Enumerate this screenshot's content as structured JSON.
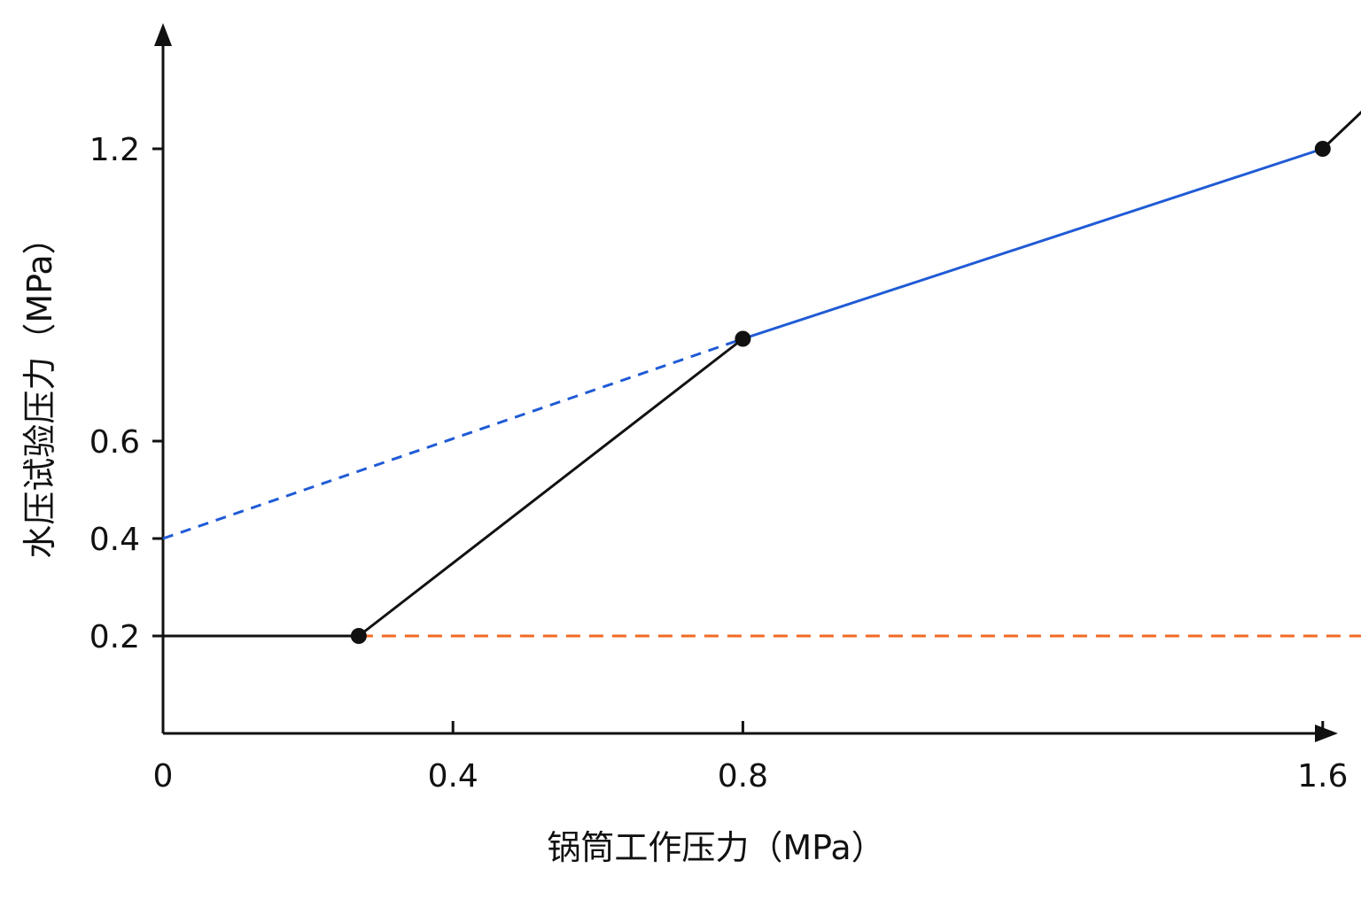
{
  "chart_data": {
    "type": "line",
    "title": "",
    "xlabel": "锅筒工作压力（MPa）",
    "ylabel": "水压试验压力（MPa）",
    "xlim": [
      0,
      1.81
    ],
    "ylim": [
      0,
      1.42
    ],
    "x_ticks": [
      {
        "value": 0.4,
        "label": "0.4"
      },
      {
        "value": 0.8,
        "label": "0.8"
      },
      {
        "value": 1.6,
        "label": "1.6"
      }
    ],
    "x_origin_label": "0",
    "y_ticks": [
      {
        "value": 0.2,
        "label": "0.2"
      },
      {
        "value": 0.4,
        "label": "0.4"
      },
      {
        "value": 0.6,
        "label": "0.6"
      },
      {
        "value": 1.2,
        "label": "1.2"
      }
    ],
    "grid": false,
    "legend": "none",
    "series": [
      {
        "id": "main-curve",
        "style": "solid",
        "color": "#111111",
        "x": [
          0,
          0.27
        ],
        "y": [
          0.2,
          0.2
        ]
      },
      {
        "id": "main-curve-rise",
        "style": "solid",
        "color": "#111111",
        "x": [
          0.27,
          0.8
        ],
        "y": [
          0.2,
          0.81
        ]
      },
      {
        "id": "blue-solid-segment",
        "style": "solid",
        "color": "#1f5bd6",
        "x": [
          0.8,
          1.6
        ],
        "y": [
          0.81,
          1.2
        ]
      },
      {
        "id": "main-curve-extension",
        "style": "solid",
        "color": "#111111",
        "x": [
          1.6,
          1.77
        ],
        "y": [
          1.2,
          1.44
        ]
      },
      {
        "id": "blue-dashed-extension",
        "style": "dashed",
        "color": "#1f5bd6",
        "x": [
          0,
          0.8
        ],
        "y": [
          0.4,
          0.81
        ]
      },
      {
        "id": "orange-dashed-line",
        "style": "dashed",
        "color": "#f26a22",
        "x": [
          0.27,
          1.83
        ],
        "y": [
          0.2,
          0.2
        ]
      }
    ],
    "points": [
      {
        "x": 0.27,
        "y": 0.2
      },
      {
        "x": 0.8,
        "y": 0.81
      },
      {
        "x": 1.6,
        "y": 1.2
      }
    ]
  }
}
